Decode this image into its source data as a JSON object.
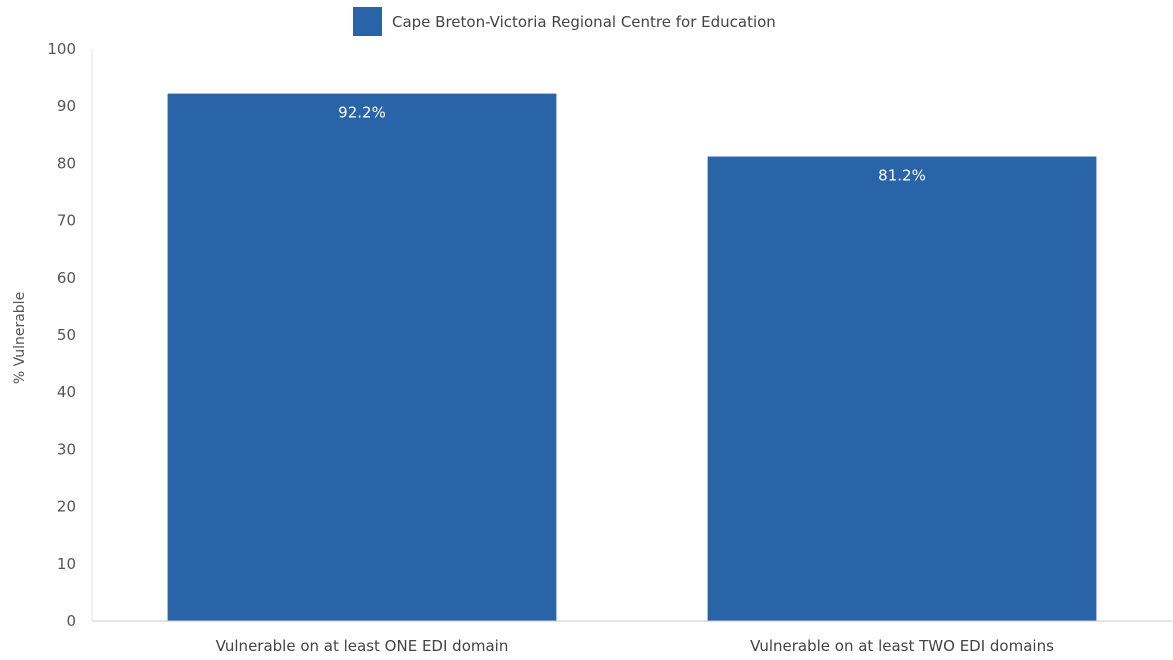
{
  "chart_data": {
    "type": "bar",
    "title": "",
    "xlabel": "",
    "ylabel": "% Vulnerable",
    "ylim": [
      0,
      100
    ],
    "yticks": [
      0,
      10,
      20,
      30,
      40,
      50,
      60,
      70,
      80,
      90,
      100
    ],
    "categories": [
      "Vulnerable on at least ONE EDI domain",
      "Vulnerable on at least TWO EDI domains"
    ],
    "series": [
      {
        "name": "Cape Breton-Victoria Regional Centre for Education",
        "values": [
          92.2,
          81.2
        ],
        "data_labels": [
          "92.2%",
          "81.2%"
        ],
        "color": "#2a64a8"
      }
    ],
    "legend_position": "top-center",
    "grid": false
  }
}
